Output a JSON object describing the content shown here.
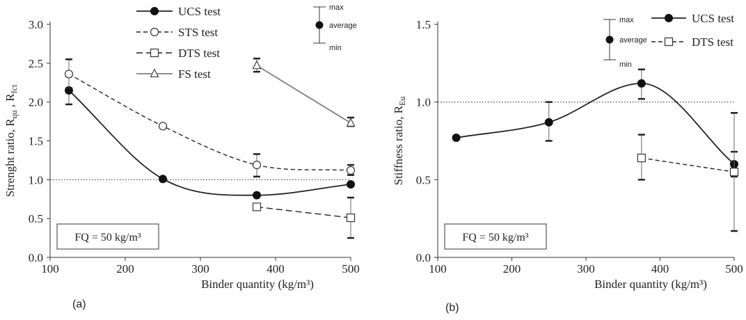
{
  "chart_data": [
    {
      "type": "line",
      "panel_label": "(a)",
      "xlabel": "Binder quantity (kg/m³)",
      "ylabel": "Strenght ratio, R",
      "ylabel_sub1": "qu",
      "ylabel_sep": " , R",
      "ylabel_sub2": "fct",
      "xlim": [
        100,
        500
      ],
      "ylim": [
        0.0,
        3.0
      ],
      "xticks": [
        100,
        200,
        300,
        400,
        500
      ],
      "yticks": [
        0.0,
        0.5,
        1.0,
        1.5,
        2.0,
        2.5,
        3.0
      ],
      "ytick_labels": [
        "0.0",
        "0.5",
        "1.0",
        "1.5",
        "2.0",
        "2.5",
        "3.0"
      ],
      "reference_line": 1.0,
      "annotation": "FQ = 50 kg/m³",
      "series": [
        {
          "name": "UCS test",
          "marker": "filled-circle",
          "line": "solid",
          "color": "#000000",
          "x": [
            125,
            250,
            375,
            500
          ],
          "y": [
            2.15,
            1.01,
            0.8,
            0.94
          ],
          "err_low": [
            1.97,
            1.0,
            0.79,
            0.92
          ],
          "err_high": [
            2.33,
            1.02,
            0.82,
            0.96
          ]
        },
        {
          "name": "STS test",
          "marker": "open-circle",
          "line": "dashed",
          "color": "#000000",
          "x": [
            125,
            250,
            375,
            500
          ],
          "y": [
            2.36,
            1.69,
            1.19,
            1.12
          ],
          "err_low": [
            2.18,
            1.68,
            1.04,
            1.06
          ],
          "err_high": [
            2.55,
            1.7,
            1.33,
            1.19
          ]
        },
        {
          "name": "DTS test",
          "marker": "open-square",
          "line": "long-dash",
          "color": "#000000",
          "x": [
            375,
            500
          ],
          "y": [
            0.65,
            0.51
          ],
          "err_low": [
            0.62,
            0.25
          ],
          "err_high": [
            0.68,
            0.77
          ]
        },
        {
          "name": "FS test",
          "marker": "open-triangle",
          "line": "solid",
          "color": "#7f7f7f",
          "x": [
            375,
            500
          ],
          "y": [
            2.47,
            1.73
          ],
          "err_low": [
            2.39,
            1.69
          ],
          "err_high": [
            2.56,
            1.8
          ]
        }
      ],
      "error_legend": {
        "max": "max",
        "average": "average",
        "min": "min"
      }
    },
    {
      "type": "line",
      "panel_label": "(b)",
      "xlabel": "Binder quantity (kg/m³)",
      "ylabel": "Stiffness ratio, R",
      "ylabel_sub1": "Eu",
      "xlim": [
        100,
        500
      ],
      "ylim": [
        0.0,
        1.5
      ],
      "xticks": [
        100,
        200,
        300,
        400,
        500
      ],
      "yticks": [
        0.0,
        0.5,
        1.0,
        1.5
      ],
      "ytick_labels": [
        "0.0",
        "0.5",
        "1.0",
        "1.5"
      ],
      "reference_line": 1.0,
      "annotation": "FQ = 50 kg/m³",
      "series": [
        {
          "name": "UCS test",
          "marker": "filled-circle",
          "line": "solid",
          "color": "#000000",
          "x": [
            125,
            250,
            375,
            500
          ],
          "y": [
            0.77,
            0.87,
            1.12,
            0.6
          ],
          "err_low": [
            0.76,
            0.75,
            1.02,
            0.52
          ],
          "err_high": [
            0.78,
            1.0,
            1.21,
            0.68
          ]
        },
        {
          "name": "DTS test",
          "marker": "open-square",
          "line": "dashed",
          "color": "#000000",
          "x": [
            375,
            500
          ],
          "y": [
            0.64,
            0.55
          ],
          "err_low": [
            0.5,
            0.17
          ],
          "err_high": [
            0.79,
            0.93
          ]
        }
      ],
      "error_legend": {
        "max": "max",
        "average": "average",
        "min": "min"
      }
    }
  ]
}
